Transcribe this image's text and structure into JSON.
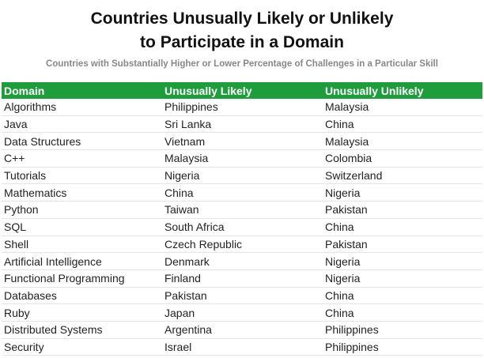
{
  "header": {
    "title_lines": [
      "Countries Unusually Likely or Unlikely",
      "to Participate in a Domain"
    ],
    "subtitle": "Countries with Substantially Higher or Lower Percentage of Challenges in a Particular Skill"
  },
  "table": {
    "columns": [
      "Domain",
      "Unusually Likely",
      "Unusually Unlikely"
    ],
    "rows": [
      [
        "Algorithms",
        "Philippines",
        "Malaysia"
      ],
      [
        "Java",
        "Sri Lanka",
        "China"
      ],
      [
        "Data Structures",
        "Vietnam",
        "Malaysia"
      ],
      [
        "C++",
        "Malaysia",
        "Colombia"
      ],
      [
        "Tutorials",
        "Nigeria",
        "Switzerland"
      ],
      [
        "Mathematics",
        "China",
        "Nigeria"
      ],
      [
        "Python",
        "Taiwan",
        "Pakistan"
      ],
      [
        "SQL",
        "South Africa",
        "China"
      ],
      [
        "Shell",
        "Czech Republic",
        "Pakistan"
      ],
      [
        "Artificial Intelligence",
        "Denmark",
        "Nigeria"
      ],
      [
        "Functional Programming",
        "Finland",
        "Nigeria"
      ],
      [
        "Databases",
        "Pakistan",
        "China"
      ],
      [
        "Ruby",
        "Japan",
        "China"
      ],
      [
        "Distributed Systems",
        "Argentina",
        "Philippines"
      ],
      [
        "Security",
        "Israel",
        "Philippines"
      ]
    ]
  }
}
